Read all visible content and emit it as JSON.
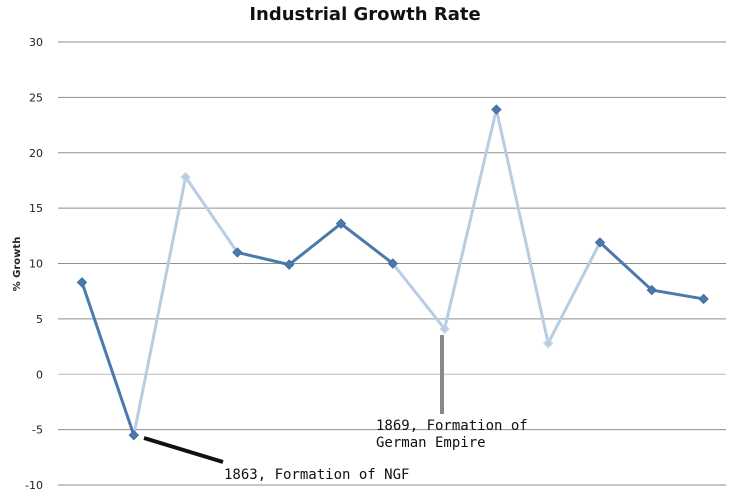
{
  "chart_data": {
    "type": "line",
    "title": "Industrial Growth Rate",
    "xlabel": "",
    "ylabel": "% Growth",
    "ylim": [
      -10,
      30
    ],
    "yticks": [
      30,
      25,
      20,
      15,
      10,
      5,
      0,
      -5,
      -10
    ],
    "grid": true,
    "legend": "none",
    "series_color": "#4a7aac",
    "highlight_color": "#b8cde3",
    "annotation_line_color": "#111111",
    "annotation_marker_color": "#888888",
    "series": [
      {
        "values": [
          8.3,
          -5.5,
          17.8,
          11.0,
          9.9,
          13.6,
          10.0,
          4.1,
          23.9,
          2.8,
          11.9,
          7.6,
          6.8
        ]
      }
    ],
    "annotations": [
      {
        "text_lines": [
          "1863, Formation of NGF"
        ],
        "point_index": 1
      },
      {
        "text_lines": [
          "1869, Formation of",
          "German Empire"
        ],
        "point_index": 7
      }
    ]
  }
}
